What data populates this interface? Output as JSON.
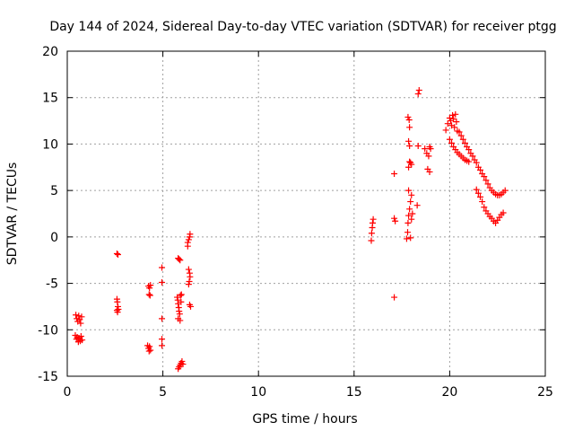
{
  "chart_data": {
    "type": "scatter",
    "title": "Day 144 of 2024, Sidereal Day-to-day VTEC variation (SDTVAR) for receiver ptgg",
    "xlabel": "GPS time / hours",
    "ylabel": "SDTVAR / TECUs",
    "xlim": [
      0,
      25
    ],
    "ylim": [
      -15,
      20
    ],
    "x_ticks": [
      0,
      5,
      10,
      15,
      20,
      25
    ],
    "y_ticks": [
      -15,
      -10,
      -5,
      0,
      5,
      10,
      15,
      20
    ],
    "grid": true,
    "marker": "+",
    "color": "#ff0000",
    "series": [
      {
        "name": "SDTVAR",
        "points": [
          [
            0.45,
            -8.4
          ],
          [
            0.5,
            -8.8
          ],
          [
            0.55,
            -9.1
          ],
          [
            0.6,
            -8.5
          ],
          [
            0.65,
            -8.9
          ],
          [
            0.7,
            -9.3
          ],
          [
            0.75,
            -8.6
          ],
          [
            0.42,
            -10.6
          ],
          [
            0.48,
            -11.0
          ],
          [
            0.52,
            -10.8
          ],
          [
            0.58,
            -11.3
          ],
          [
            0.62,
            -10.9
          ],
          [
            0.68,
            -11.2
          ],
          [
            0.72,
            -10.7
          ],
          [
            0.78,
            -11.1
          ],
          [
            2.6,
            -1.8
          ],
          [
            2.65,
            -1.9
          ],
          [
            2.6,
            -6.7
          ],
          [
            2.62,
            -7.0
          ],
          [
            2.65,
            -7.5
          ],
          [
            2.6,
            -7.9
          ],
          [
            2.63,
            -8.1
          ],
          [
            2.67,
            -7.8
          ],
          [
            4.25,
            -5.3
          ],
          [
            4.3,
            -5.5
          ],
          [
            4.35,
            -5.2
          ],
          [
            4.28,
            -6.2
          ],
          [
            4.33,
            -6.3
          ],
          [
            4.2,
            -11.7
          ],
          [
            4.25,
            -12.0
          ],
          [
            4.3,
            -11.8
          ],
          [
            4.35,
            -12.2
          ],
          [
            4.28,
            -12.3
          ],
          [
            4.95,
            -3.3
          ],
          [
            4.95,
            -4.9
          ],
          [
            4.95,
            -8.8
          ],
          [
            4.95,
            -11.0
          ],
          [
            4.95,
            -11.7
          ],
          [
            5.75,
            -6.5
          ],
          [
            5.78,
            -6.8
          ],
          [
            5.8,
            -7.2
          ],
          [
            5.83,
            -7.6
          ],
          [
            5.85,
            -8.0
          ],
          [
            5.88,
            -8.3
          ],
          [
            5.8,
            -8.8
          ],
          [
            5.9,
            -9.0
          ],
          [
            5.92,
            -6.3
          ],
          [
            5.95,
            -7.0
          ],
          [
            5.97,
            -6.2
          ],
          [
            5.8,
            -2.3
          ],
          [
            5.85,
            -2.4
          ],
          [
            5.9,
            -2.5
          ],
          [
            5.8,
            -14.2
          ],
          [
            5.85,
            -14.0
          ],
          [
            5.9,
            -13.8
          ],
          [
            5.95,
            -13.6
          ],
          [
            6.0,
            -13.4
          ],
          [
            6.05,
            -13.7
          ],
          [
            6.3,
            -0.6
          ],
          [
            6.35,
            -0.3
          ],
          [
            6.4,
            0.0
          ],
          [
            6.42,
            0.3
          ],
          [
            6.3,
            -1.0
          ],
          [
            6.35,
            -3.5
          ],
          [
            6.4,
            -3.9
          ],
          [
            6.42,
            -4.3
          ],
          [
            6.38,
            -4.8
          ],
          [
            6.35,
            -5.1
          ],
          [
            6.4,
            -7.3
          ],
          [
            6.45,
            -7.5
          ],
          [
            15.9,
            -0.4
          ],
          [
            15.92,
            0.4
          ],
          [
            15.95,
            1.0
          ],
          [
            15.97,
            1.5
          ],
          [
            16.0,
            1.9
          ],
          [
            17.1,
            6.8
          ],
          [
            17.1,
            2.0
          ],
          [
            17.15,
            1.7
          ],
          [
            17.1,
            -6.5
          ],
          [
            17.75,
            -0.2
          ],
          [
            17.8,
            0.5
          ],
          [
            17.82,
            1.5
          ],
          [
            17.85,
            2.3
          ],
          [
            17.9,
            3.0
          ],
          [
            17.95,
            3.8
          ],
          [
            18.0,
            4.5
          ],
          [
            17.85,
            5.0
          ],
          [
            17.85,
            7.5
          ],
          [
            17.9,
            8.1
          ],
          [
            17.95,
            8.0
          ],
          [
            18.0,
            7.8
          ],
          [
            17.9,
            9.8
          ],
          [
            17.85,
            10.3
          ],
          [
            17.82,
            12.9
          ],
          [
            17.88,
            12.6
          ],
          [
            17.9,
            11.8
          ],
          [
            17.95,
            -0.1
          ],
          [
            18.0,
            1.9
          ],
          [
            18.05,
            2.5
          ],
          [
            18.35,
            15.4
          ],
          [
            18.4,
            15.8
          ],
          [
            18.35,
            9.8
          ],
          [
            18.3,
            3.4
          ],
          [
            18.7,
            9.5
          ],
          [
            18.8,
            9.0
          ],
          [
            18.9,
            8.7
          ],
          [
            18.95,
            9.7
          ],
          [
            19.0,
            9.5
          ],
          [
            18.85,
            7.3
          ],
          [
            18.95,
            7.0
          ],
          [
            19.8,
            11.5
          ],
          [
            19.9,
            12.2
          ],
          [
            20.0,
            12.8
          ],
          [
            20.05,
            12.5
          ],
          [
            20.1,
            12.0
          ],
          [
            20.15,
            13.1
          ],
          [
            20.2,
            12.7
          ],
          [
            20.25,
            11.8
          ],
          [
            20.3,
            13.2
          ],
          [
            20.35,
            12.4
          ],
          [
            20.4,
            11.4
          ],
          [
            20.0,
            10.5
          ],
          [
            20.1,
            10.1
          ],
          [
            20.2,
            9.7
          ],
          [
            20.3,
            9.4
          ],
          [
            20.4,
            9.1
          ],
          [
            20.5,
            8.9
          ],
          [
            20.6,
            8.7
          ],
          [
            20.7,
            8.5
          ],
          [
            20.8,
            8.3
          ],
          [
            20.9,
            8.2
          ],
          [
            21.0,
            8.1
          ],
          [
            20.5,
            11.3
          ],
          [
            20.6,
            10.9
          ],
          [
            20.7,
            10.5
          ],
          [
            20.8,
            10.1
          ],
          [
            20.9,
            9.7
          ],
          [
            21.0,
            9.4
          ],
          [
            21.1,
            9.0
          ],
          [
            21.2,
            8.7
          ],
          [
            21.3,
            8.3
          ],
          [
            21.4,
            8.0
          ],
          [
            21.5,
            7.5
          ],
          [
            21.6,
            7.2
          ],
          [
            21.7,
            6.8
          ],
          [
            21.8,
            6.5
          ],
          [
            21.9,
            6.1
          ],
          [
            22.0,
            5.7
          ],
          [
            22.1,
            5.3
          ],
          [
            22.2,
            5.0
          ],
          [
            22.3,
            4.8
          ],
          [
            22.4,
            4.6
          ],
          [
            22.5,
            4.5
          ],
          [
            22.6,
            4.5
          ],
          [
            22.7,
            4.6
          ],
          [
            22.8,
            4.8
          ],
          [
            22.9,
            5.0
          ],
          [
            21.4,
            5.1
          ],
          [
            21.5,
            4.7
          ],
          [
            21.6,
            4.3
          ],
          [
            21.7,
            3.8
          ],
          [
            21.8,
            3.2
          ],
          [
            21.9,
            2.8
          ],
          [
            22.0,
            2.5
          ],
          [
            22.1,
            2.2
          ],
          [
            22.2,
            2.0
          ],
          [
            22.3,
            1.7
          ],
          [
            22.4,
            1.5
          ],
          [
            22.5,
            1.8
          ],
          [
            22.6,
            2.1
          ],
          [
            22.7,
            2.4
          ],
          [
            22.8,
            2.6
          ]
        ]
      }
    ]
  }
}
